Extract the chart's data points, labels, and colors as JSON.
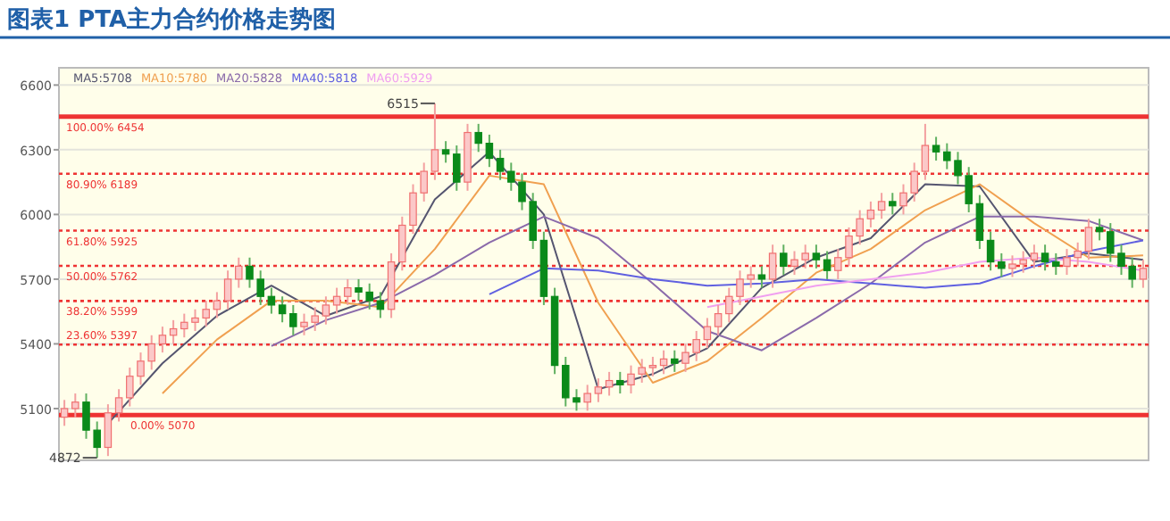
{
  "chart_data": {
    "type": "candlestick",
    "title": "图表1  PTA主力合约价格走势图",
    "categories": [
      null,
      null,
      null,
      null,
      null,
      null,
      null,
      null,
      null,
      null,
      null,
      null,
      null,
      null,
      null,
      null,
      null,
      null,
      null,
      null,
      null,
      null,
      null,
      null,
      null,
      null,
      null,
      null,
      null,
      null,
      null,
      null,
      null,
      null,
      null,
      null,
      null,
      null,
      null,
      null,
      null,
      null,
      null,
      null,
      null,
      null,
      null,
      null,
      null,
      null,
      null,
      null,
      null,
      null,
      null,
      null,
      null,
      null,
      null,
      null,
      null,
      null,
      null,
      null,
      null,
      null,
      null,
      null,
      null,
      null,
      null,
      null,
      null,
      null,
      null,
      null,
      null,
      null,
      null,
      null,
      null,
      null,
      null,
      null,
      null,
      null,
      null,
      null,
      null,
      null,
      null,
      null,
      null,
      null,
      null,
      null,
      null,
      null,
      null,
      null
    ],
    "ohlc": [
      [
        5060,
        5140,
        5020,
        5100
      ],
      [
        5100,
        5170,
        5060,
        5130
      ],
      [
        5130,
        5170,
        4960,
        5000
      ],
      [
        5000,
        5040,
        4872,
        4920
      ],
      [
        4920,
        5120,
        4880,
        5080
      ],
      [
        5080,
        5190,
        5040,
        5150
      ],
      [
        5150,
        5290,
        5110,
        5250
      ],
      [
        5250,
        5360,
        5210,
        5320
      ],
      [
        5320,
        5440,
        5280,
        5400
      ],
      [
        5400,
        5480,
        5360,
        5440
      ],
      [
        5440,
        5510,
        5400,
        5470
      ],
      [
        5470,
        5540,
        5430,
        5500
      ],
      [
        5500,
        5560,
        5460,
        5520
      ],
      [
        5520,
        5600,
        5480,
        5560
      ],
      [
        5560,
        5640,
        5520,
        5600
      ],
      [
        5600,
        5740,
        5560,
        5700
      ],
      [
        5700,
        5800,
        5660,
        5760
      ],
      [
        5760,
        5800,
        5660,
        5700
      ],
      [
        5700,
        5740,
        5580,
        5620
      ],
      [
        5620,
        5660,
        5540,
        5580
      ],
      [
        5580,
        5620,
        5500,
        5540
      ],
      [
        5540,
        5580,
        5440,
        5480
      ],
      [
        5480,
        5540,
        5440,
        5500
      ],
      [
        5500,
        5570,
        5460,
        5530
      ],
      [
        5530,
        5620,
        5490,
        5580
      ],
      [
        5580,
        5660,
        5540,
        5620
      ],
      [
        5620,
        5700,
        5580,
        5660
      ],
      [
        5660,
        5700,
        5600,
        5640
      ],
      [
        5640,
        5680,
        5560,
        5600
      ],
      [
        5600,
        5640,
        5520,
        5560
      ],
      [
        5560,
        5820,
        5520,
        5780
      ],
      [
        5780,
        5990,
        5740,
        5950
      ],
      [
        5950,
        6140,
        5910,
        6100
      ],
      [
        6100,
        6240,
        6060,
        6200
      ],
      [
        6200,
        6515,
        6160,
        6300
      ],
      [
        6300,
        6340,
        6240,
        6280
      ],
      [
        6280,
        6320,
        6110,
        6150
      ],
      [
        6150,
        6420,
        6110,
        6380
      ],
      [
        6380,
        6420,
        6290,
        6330
      ],
      [
        6330,
        6370,
        6220,
        6260
      ],
      [
        6260,
        6300,
        6160,
        6200
      ],
      [
        6200,
        6240,
        6110,
        6150
      ],
      [
        6150,
        6190,
        6020,
        6060
      ],
      [
        6060,
        6100,
        5840,
        5880
      ],
      [
        5880,
        5920,
        5580,
        5620
      ],
      [
        5620,
        5660,
        5260,
        5300
      ],
      [
        5300,
        5340,
        5110,
        5150
      ],
      [
        5150,
        5190,
        5090,
        5130
      ],
      [
        5130,
        5210,
        5090,
        5170
      ],
      [
        5170,
        5240,
        5130,
        5200
      ],
      [
        5200,
        5270,
        5160,
        5230
      ],
      [
        5230,
        5270,
        5170,
        5210
      ],
      [
        5210,
        5300,
        5170,
        5260
      ],
      [
        5260,
        5330,
        5220,
        5290
      ],
      [
        5290,
        5340,
        5250,
        5300
      ],
      [
        5300,
        5370,
        5260,
        5330
      ],
      [
        5330,
        5370,
        5270,
        5310
      ],
      [
        5310,
        5400,
        5270,
        5360
      ],
      [
        5360,
        5460,
        5320,
        5420
      ],
      [
        5420,
        5520,
        5380,
        5480
      ],
      [
        5480,
        5580,
        5440,
        5540
      ],
      [
        5540,
        5660,
        5500,
        5620
      ],
      [
        5620,
        5740,
        5580,
        5700
      ],
      [
        5700,
        5760,
        5660,
        5720
      ],
      [
        5720,
        5760,
        5660,
        5700
      ],
      [
        5700,
        5860,
        5660,
        5820
      ],
      [
        5820,
        5860,
        5720,
        5760
      ],
      [
        5760,
        5830,
        5720,
        5790
      ],
      [
        5790,
        5860,
        5750,
        5820
      ],
      [
        5820,
        5860,
        5750,
        5790
      ],
      [
        5790,
        5830,
        5700,
        5740
      ],
      [
        5740,
        5840,
        5700,
        5800
      ],
      [
        5800,
        5940,
        5760,
        5900
      ],
      [
        5900,
        6020,
        5860,
        5980
      ],
      [
        5980,
        6060,
        5940,
        6020
      ],
      [
        6020,
        6100,
        5980,
        6060
      ],
      [
        6060,
        6100,
        6000,
        6040
      ],
      [
        6040,
        6140,
        6000,
        6100
      ],
      [
        6100,
        6240,
        6060,
        6200
      ],
      [
        6200,
        6420,
        6160,
        6320
      ],
      [
        6320,
        6360,
        6250,
        6290
      ],
      [
        6290,
        6330,
        6210,
        6250
      ],
      [
        6250,
        6290,
        6140,
        6180
      ],
      [
        6180,
        6220,
        6010,
        6050
      ],
      [
        6050,
        6090,
        5840,
        5880
      ],
      [
        5880,
        5920,
        5740,
        5780
      ],
      [
        5780,
        5820,
        5710,
        5750
      ],
      [
        5750,
        5810,
        5710,
        5770
      ],
      [
        5770,
        5830,
        5730,
        5790
      ],
      [
        5790,
        5860,
        5750,
        5820
      ],
      [
        5820,
        5860,
        5740,
        5780
      ],
      [
        5780,
        5820,
        5720,
        5760
      ],
      [
        5760,
        5840,
        5720,
        5800
      ],
      [
        5800,
        5870,
        5760,
        5830
      ],
      [
        5830,
        5980,
        5790,
        5940
      ],
      [
        5940,
        5980,
        5880,
        5920
      ],
      [
        5920,
        5960,
        5780,
        5820
      ],
      [
        5820,
        5860,
        5720,
        5760
      ],
      [
        5760,
        5800,
        5660,
        5700
      ],
      [
        5700,
        5790,
        5660,
        5750
      ]
    ],
    "series": [
      {
        "name": "MA5:5708",
        "type": "line",
        "color": "#555570",
        "values": [
          null,
          null,
          null,
          null,
          5030,
          null,
          null,
          null,
          null,
          5310,
          null,
          null,
          null,
          null,
          5530,
          null,
          null,
          null,
          null,
          5670,
          null,
          null,
          null,
          null,
          5530,
          null,
          null,
          null,
          null,
          5620,
          null,
          null,
          null,
          null,
          6070,
          null,
          null,
          null,
          null,
          6290,
          null,
          null,
          null,
          null,
          6000,
          null,
          null,
          null,
          null,
          5190,
          null,
          null,
          null,
          null,
          5260,
          null,
          null,
          null,
          null,
          5380,
          null,
          null,
          null,
          null,
          5660,
          null,
          null,
          null,
          null,
          5800,
          null,
          null,
          null,
          null,
          5890,
          null,
          null,
          null,
          null,
          6140,
          null,
          null,
          null,
          null,
          6130,
          null,
          null,
          null,
          null,
          5780,
          null,
          null,
          null,
          null,
          5820,
          null,
          null,
          null,
          null,
          5790
        ]
      },
      {
        "name": "MA10:5780",
        "type": "line",
        "color": "#f0a050",
        "values": [
          null,
          null,
          null,
          null,
          null,
          null,
          null,
          null,
          null,
          5170,
          null,
          null,
          null,
          null,
          5420,
          null,
          null,
          null,
          null,
          5600,
          null,
          null,
          null,
          null,
          5600,
          null,
          null,
          null,
          null,
          5570,
          null,
          null,
          null,
          null,
          5840,
          null,
          null,
          null,
          null,
          6180,
          null,
          null,
          null,
          null,
          6140,
          null,
          null,
          null,
          null,
          5590,
          null,
          null,
          null,
          null,
          5220,
          null,
          null,
          null,
          null,
          5320,
          null,
          null,
          null,
          null,
          5520,
          null,
          null,
          null,
          null,
          5730,
          null,
          null,
          null,
          null,
          5840,
          null,
          null,
          null,
          null,
          6020,
          null,
          null,
          null,
          null,
          6140,
          null,
          null,
          null,
          null,
          5960,
          null,
          null,
          null,
          null,
          5800,
          null,
          null,
          null,
          null,
          5810
        ]
      },
      {
        "name": "MA20:5828",
        "type": "line",
        "color": "#8a6aaa",
        "values": [
          null,
          null,
          null,
          null,
          null,
          null,
          null,
          null,
          null,
          null,
          null,
          null,
          null,
          null,
          null,
          null,
          null,
          null,
          null,
          5390,
          null,
          null,
          null,
          null,
          5510,
          null,
          null,
          null,
          null,
          5590,
          null,
          null,
          null,
          null,
          5720,
          null,
          null,
          null,
          null,
          5870,
          null,
          null,
          null,
          null,
          5990,
          null,
          null,
          null,
          null,
          5890,
          null,
          null,
          null,
          null,
          5680,
          null,
          null,
          null,
          null,
          5460,
          null,
          null,
          null,
          null,
          5370,
          null,
          null,
          null,
          null,
          5520,
          null,
          null,
          null,
          null,
          5680,
          null,
          null,
          null,
          null,
          5870,
          null,
          null,
          null,
          null,
          5990,
          null,
          null,
          null,
          null,
          5990,
          null,
          null,
          null,
          null,
          5970,
          null,
          null,
          null,
          null,
          5880
        ]
      },
      {
        "name": "MA40:5818",
        "type": "line",
        "color": "#6060e0",
        "values": [
          null,
          null,
          null,
          null,
          null,
          null,
          null,
          null,
          null,
          null,
          null,
          null,
          null,
          null,
          null,
          null,
          null,
          null,
          null,
          null,
          null,
          null,
          null,
          null,
          null,
          null,
          null,
          null,
          null,
          null,
          null,
          null,
          null,
          null,
          null,
          null,
          null,
          null,
          null,
          5630,
          null,
          null,
          null,
          null,
          5750,
          null,
          null,
          null,
          null,
          5740,
          null,
          null,
          null,
          null,
          5700,
          null,
          null,
          null,
          null,
          5670,
          null,
          null,
          null,
          null,
          5680,
          null,
          null,
          null,
          null,
          5700,
          null,
          null,
          null,
          null,
          5680,
          null,
          null,
          null,
          null,
          5660,
          null,
          null,
          null,
          null,
          5680,
          null,
          null,
          null,
          null,
          5760,
          null,
          null,
          null,
          null,
          5830,
          null,
          null,
          null,
          null,
          5880
        ]
      },
      {
        "name": "MA60:5929",
        "type": "line",
        "color": "#f0a0f0",
        "values": [
          null,
          null,
          null,
          null,
          null,
          null,
          null,
          null,
          null,
          null,
          null,
          null,
          null,
          null,
          null,
          null,
          null,
          null,
          null,
          null,
          null,
          null,
          null,
          null,
          null,
          null,
          null,
          null,
          null,
          null,
          null,
          null,
          null,
          null,
          null,
          null,
          null,
          null,
          null,
          null,
          null,
          null,
          null,
          null,
          null,
          null,
          null,
          null,
          null,
          null,
          null,
          null,
          null,
          null,
          null,
          null,
          null,
          null,
          null,
          5570,
          null,
          null,
          null,
          null,
          5620,
          null,
          null,
          null,
          null,
          5670,
          null,
          null,
          null,
          null,
          5700,
          null,
          null,
          null,
          null,
          5730,
          null,
          null,
          null,
          null,
          5780,
          null,
          null,
          null,
          null,
          5800,
          null,
          null,
          null,
          null,
          5780,
          null,
          null,
          null,
          null,
          5740
        ]
      }
    ],
    "ylim": [
      4860,
      6680
    ],
    "yticks": [
      5100,
      5400,
      5700,
      6000,
      6300,
      6600
    ],
    "grid": "y",
    "legend": "top left",
    "ref_lines": [
      {
        "axis": "y",
        "value": 6454,
        "label": "100.00% 6454",
        "color": "#ee3333",
        "line_style": "solid"
      },
      {
        "axis": "y",
        "value": 6189,
        "label": "80.90% 6189",
        "color": "#ee3333",
        "line_style": "dotted"
      },
      {
        "axis": "y",
        "value": 5925,
        "label": "61.80% 5925",
        "color": "#ee3333",
        "line_style": "dotted"
      },
      {
        "axis": "y",
        "value": 5762,
        "label": "50.00% 5762",
        "color": "#ee3333",
        "line_style": "dotted"
      },
      {
        "axis": "y",
        "value": 5599,
        "label": "38.20% 5599",
        "color": "#ee3333",
        "line_style": "dotted"
      },
      {
        "axis": "y",
        "value": 5397,
        "label": "23.60% 5397",
        "color": "#ee3333",
        "line_style": "dotted"
      },
      {
        "axis": "y",
        "value": 5070,
        "label": "0.00% 5070",
        "color": "#ee3333",
        "line_style": "solid"
      }
    ],
    "annotations": [
      "6515",
      "4872"
    ]
  }
}
